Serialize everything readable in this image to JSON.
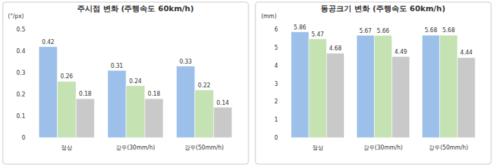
{
  "chart_data": [
    {
      "type": "bar",
      "title": "주시점 변화 (주행속도 60km/h)",
      "y_label": "(°/px)",
      "categories": [
        "정상",
        "강우(30mm/h)",
        "강우(50mm/h)"
      ],
      "series": [
        {
          "color": "#9dc0ea",
          "values": [
            0.42,
            0.31,
            0.33
          ]
        },
        {
          "color": "#c4e2b2",
          "values": [
            0.26,
            0.24,
            0.22
          ]
        },
        {
          "color": "#c9c9c9",
          "values": [
            0.18,
            0.18,
            0.14
          ]
        }
      ],
      "ylim": [
        0,
        0.5
      ],
      "yticks": [
        0,
        0.1,
        0.2,
        0.3,
        0.4,
        0.5
      ],
      "grid": false,
      "data_labels": true
    },
    {
      "type": "bar",
      "title": "동공크기 변화 (주행속도 60km/h)",
      "y_label": "(mm)",
      "categories": [
        "정상",
        "강우(30mm/h)",
        "강우(50mm/h)"
      ],
      "series": [
        {
          "color": "#9dc0ea",
          "values": [
            5.86,
            5.67,
            5.68
          ]
        },
        {
          "color": "#c4e2b2",
          "values": [
            5.47,
            5.66,
            5.68
          ]
        },
        {
          "color": "#c9c9c9",
          "values": [
            4.68,
            4.49,
            4.44
          ]
        }
      ],
      "ylim": [
        0,
        6
      ],
      "yticks": [
        0,
        1,
        2,
        3,
        4,
        5,
        6
      ],
      "grid": false,
      "data_labels": true
    }
  ]
}
